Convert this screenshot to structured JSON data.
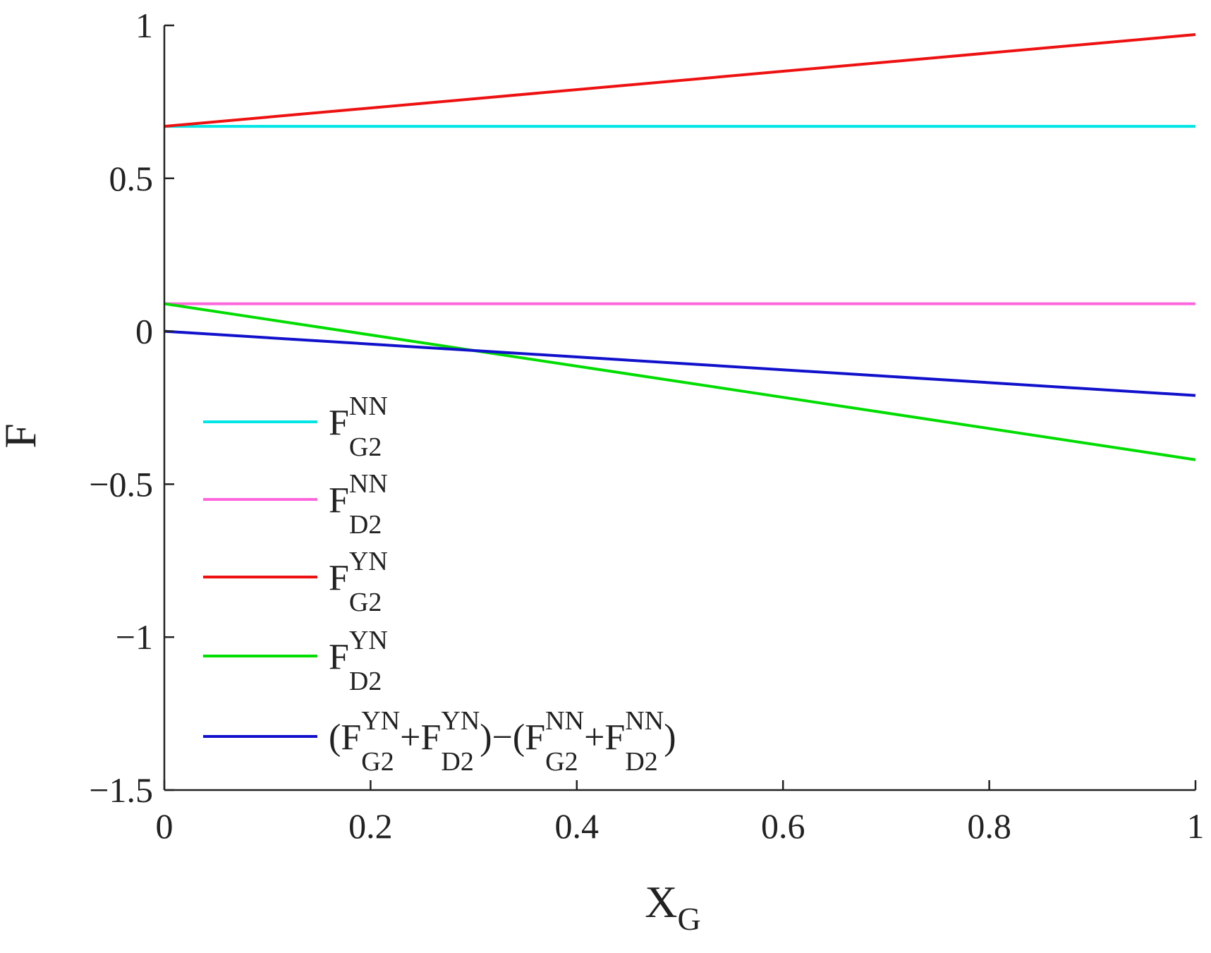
{
  "chart_data": {
    "type": "line",
    "title": "",
    "xlabel": {
      "base": "X",
      "sub": "G"
    },
    "ylabel": "F",
    "xlim": [
      0,
      1
    ],
    "ylim": [
      -1.5,
      1
    ],
    "xticks": [
      "0",
      "0.2",
      "0.4",
      "0.6",
      "0.8",
      "1"
    ],
    "yticks": [
      "−1.5",
      "−1",
      "−0.5",
      "0",
      "0.5",
      "1"
    ],
    "xtick_values": [
      0,
      0.2,
      0.4,
      0.6,
      0.8,
      1
    ],
    "ytick_values": [
      -1.5,
      -1,
      -0.5,
      0,
      0.5,
      1
    ],
    "grid": false,
    "legend_position": "left",
    "series": [
      {
        "name": "F_G2^NN",
        "color": "#00e5e5",
        "x": [
          0,
          1
        ],
        "y": [
          0.67,
          0.67
        ],
        "label_parts": [
          {
            "t": "F",
            "k": "base"
          },
          {
            "t": "G2",
            "k": "sub"
          },
          {
            "t": "NN",
            "k": "sup"
          }
        ]
      },
      {
        "name": "F_D2^NN",
        "color": "#ff66dd",
        "x": [
          0,
          1
        ],
        "y": [
          0.09,
          0.09
        ],
        "label_parts": [
          {
            "t": "F",
            "k": "base"
          },
          {
            "t": "D2",
            "k": "sub"
          },
          {
            "t": "NN",
            "k": "sup"
          }
        ]
      },
      {
        "name": "F_G2^YN",
        "color": "#ee1111",
        "x": [
          0,
          1
        ],
        "y": [
          0.67,
          0.97
        ],
        "label_parts": [
          {
            "t": "F",
            "k": "base"
          },
          {
            "t": "G2",
            "k": "sub"
          },
          {
            "t": "YN",
            "k": "sup"
          }
        ]
      },
      {
        "name": "F_D2^YN",
        "color": "#00dd00",
        "x": [
          0,
          1
        ],
        "y": [
          0.09,
          -0.42
        ],
        "label_parts": [
          {
            "t": "F",
            "k": "base"
          },
          {
            "t": "D2",
            "k": "sub"
          },
          {
            "t": "YN",
            "k": "sup"
          }
        ]
      },
      {
        "name": "(F_G2^YN+F_D2^YN)-(F_G2^NN+F_D2^NN)",
        "color": "#1111cc",
        "x": [
          0,
          1
        ],
        "y": [
          0,
          -0.21
        ],
        "label_parts": [
          {
            "t": "(F",
            "k": "base"
          },
          {
            "t": "G2",
            "k": "sub"
          },
          {
            "t": "YN",
            "k": "sup"
          },
          {
            "t": "+F",
            "k": "base"
          },
          {
            "t": "D2",
            "k": "sub"
          },
          {
            "t": "YN",
            "k": "sup"
          },
          {
            "t": ")−(F",
            "k": "base"
          },
          {
            "t": "G2",
            "k": "sub"
          },
          {
            "t": "NN",
            "k": "sup"
          },
          {
            "t": "+F",
            "k": "base"
          },
          {
            "t": "D2",
            "k": "sub"
          },
          {
            "t": "NN",
            "k": "sup"
          },
          {
            "t": ")",
            "k": "base"
          }
        ]
      }
    ]
  }
}
